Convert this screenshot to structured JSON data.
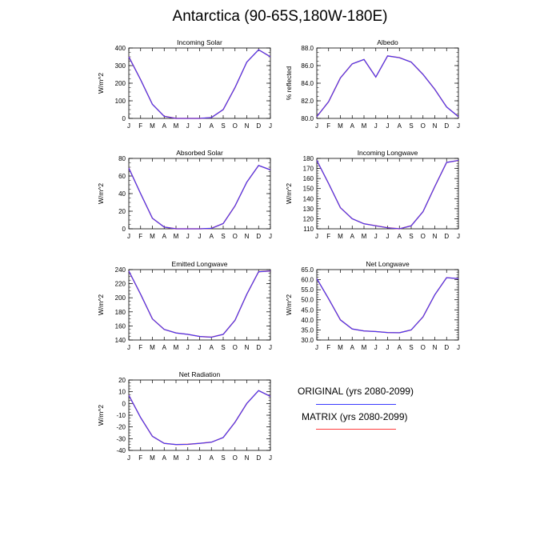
{
  "figure": {
    "title": "Antarctica (90-65S,180W-180E)"
  },
  "legend": {
    "entries": [
      {
        "label": "ORIGINAL (yrs 2080-2099)",
        "color": "#3b3bff"
      },
      {
        "label": "MATRIX (yrs 2080-2099)",
        "color": "#ff3b3b"
      }
    ]
  },
  "chart_data": [
    {
      "type": "line",
      "title": "Incoming Solar",
      "ylabel": "W/m^2",
      "x": [
        "J",
        "F",
        "M",
        "A",
        "M",
        "J",
        "J",
        "A",
        "S",
        "O",
        "N",
        "D",
        "J"
      ],
      "ylim": [
        0,
        400
      ],
      "yticks": [
        0,
        100,
        200,
        300,
        400
      ],
      "yticklabels": [
        "0",
        "100",
        "200",
        "300",
        "400"
      ],
      "series": [
        {
          "name": "ORIGINAL (yrs 2080-2099)",
          "values": [
            350,
            220,
            80,
            12,
            0,
            0,
            0,
            5,
            50,
            175,
            320,
            390,
            350
          ]
        },
        {
          "name": "MATRIX (yrs 2080-2099)",
          "values": [
            350,
            220,
            80,
            12,
            0,
            0,
            0,
            5,
            50,
            175,
            320,
            390,
            350
          ]
        }
      ]
    },
    {
      "type": "line",
      "title": "Albedo",
      "ylabel": "% reflected",
      "x": [
        "J",
        "F",
        "M",
        "A",
        "M",
        "J",
        "J",
        "A",
        "S",
        "O",
        "N",
        "D",
        "J"
      ],
      "ylim": [
        80,
        88
      ],
      "yticks": [
        80,
        82,
        84,
        86,
        88
      ],
      "yticklabels": [
        "80.0",
        "82.0",
        "84.0",
        "86.0",
        "88.0"
      ],
      "series": [
        {
          "name": "ORIGINAL (yrs 2080-2099)",
          "values": [
            80.2,
            81.9,
            84.6,
            86.2,
            86.7,
            84.7,
            87.1,
            86.9,
            86.4,
            85.0,
            83.3,
            81.3,
            80.2
          ]
        },
        {
          "name": "MATRIX (yrs 2080-2099)",
          "values": [
            80.2,
            81.9,
            84.6,
            86.2,
            86.7,
            84.7,
            87.1,
            86.9,
            86.4,
            85.0,
            83.3,
            81.3,
            80.2
          ]
        }
      ]
    },
    {
      "type": "line",
      "title": "Absorbed Solar",
      "ylabel": "W/m^2",
      "x": [
        "J",
        "F",
        "M",
        "A",
        "M",
        "J",
        "J",
        "A",
        "S",
        "O",
        "N",
        "D",
        "J"
      ],
      "ylim": [
        0,
        80
      ],
      "yticks": [
        0,
        20,
        40,
        60,
        80
      ],
      "yticklabels": [
        "0",
        "20",
        "40",
        "60",
        "80"
      ],
      "series": [
        {
          "name": "ORIGINAL (yrs 2080-2099)",
          "values": [
            69,
            40,
            12,
            2,
            0,
            0,
            0,
            0.5,
            6,
            26,
            53,
            72,
            67
          ]
        },
        {
          "name": "MATRIX (yrs 2080-2099)",
          "values": [
            69,
            40,
            12,
            2,
            0,
            0,
            0,
            0.5,
            6,
            26,
            53,
            72,
            67
          ]
        }
      ]
    },
    {
      "type": "line",
      "title": "Incoming Longwave",
      "ylabel": "W/m^2",
      "x": [
        "J",
        "F",
        "M",
        "A",
        "M",
        "J",
        "J",
        "A",
        "S",
        "O",
        "N",
        "D",
        "J"
      ],
      "ylim": [
        110,
        180
      ],
      "yticks": [
        110,
        120,
        130,
        140,
        150,
        160,
        170,
        180
      ],
      "yticklabels": [
        "110",
        "120",
        "130",
        "140",
        "150",
        "160",
        "170",
        "180"
      ],
      "series": [
        {
          "name": "ORIGINAL (yrs 2080-2099)",
          "values": [
            178,
            155,
            131,
            120,
            115,
            113,
            111,
            110,
            113,
            127,
            152,
            176,
            178
          ]
        },
        {
          "name": "MATRIX (yrs 2080-2099)",
          "values": [
            178,
            155,
            131,
            120,
            115,
            113,
            111,
            110,
            113,
            127,
            152,
            176,
            178
          ]
        }
      ]
    },
    {
      "type": "line",
      "title": "Emitted Longwave",
      "ylabel": "W/m^2",
      "x": [
        "J",
        "F",
        "M",
        "A",
        "M",
        "J",
        "J",
        "A",
        "S",
        "O",
        "N",
        "D",
        "J"
      ],
      "ylim": [
        140,
        240
      ],
      "yticks": [
        140,
        160,
        180,
        200,
        220,
        240
      ],
      "yticklabels": [
        "140",
        "160",
        "180",
        "200",
        "220",
        "240"
      ],
      "series": [
        {
          "name": "ORIGINAL (yrs 2080-2099)",
          "values": [
            238,
            205,
            170,
            155,
            150,
            148,
            145,
            144,
            148,
            168,
            205,
            237,
            238
          ]
        },
        {
          "name": "MATRIX (yrs 2080-2099)",
          "values": [
            238,
            205,
            170,
            155,
            150,
            148,
            145,
            144,
            148,
            168,
            205,
            237,
            238
          ]
        }
      ]
    },
    {
      "type": "line",
      "title": "Net Longwave",
      "ylabel": "W/m^2",
      "x": [
        "J",
        "F",
        "M",
        "A",
        "M",
        "J",
        "J",
        "A",
        "S",
        "O",
        "N",
        "D",
        "J"
      ],
      "ylim": [
        30,
        65
      ],
      "yticks": [
        30,
        35,
        40,
        45,
        50,
        55,
        60,
        65
      ],
      "yticklabels": [
        "30.0",
        "35.0",
        "40.0",
        "45.0",
        "50.0",
        "55.0",
        "60.0",
        "65.0"
      ],
      "series": [
        {
          "name": "ORIGINAL (yrs 2080-2099)",
          "values": [
            60.5,
            50.5,
            40.0,
            35.5,
            34.5,
            34.2,
            33.7,
            33.6,
            35.0,
            41.5,
            52.5,
            61.0,
            60.5
          ]
        },
        {
          "name": "MATRIX (yrs 2080-2099)",
          "values": [
            60.5,
            50.5,
            40.0,
            35.5,
            34.5,
            34.2,
            33.7,
            33.6,
            35.0,
            41.5,
            52.5,
            61.0,
            60.5
          ]
        }
      ]
    },
    {
      "type": "line",
      "title": "Net Radiation",
      "ylabel": "W/m^2",
      "x": [
        "J",
        "F",
        "M",
        "A",
        "M",
        "J",
        "J",
        "A",
        "S",
        "O",
        "N",
        "D",
        "J"
      ],
      "ylim": [
        -40,
        20
      ],
      "yticks": [
        -40,
        -30,
        -20,
        -10,
        0,
        10,
        20
      ],
      "yticklabels": [
        "-40",
        "-30",
        "-20",
        "-10",
        "0",
        "10",
        "20"
      ],
      "series": [
        {
          "name": "ORIGINAL (yrs 2080-2099)",
          "values": [
            7,
            -12,
            -28,
            -34,
            -35,
            -34.8,
            -34,
            -33,
            -29,
            -16,
            0,
            11,
            6
          ]
        },
        {
          "name": "MATRIX (yrs 2080-2099)",
          "values": [
            7,
            -12,
            -28,
            -34,
            -35,
            -34.8,
            -34,
            -33,
            -29,
            -16,
            0,
            11,
            6
          ]
        }
      ]
    }
  ]
}
